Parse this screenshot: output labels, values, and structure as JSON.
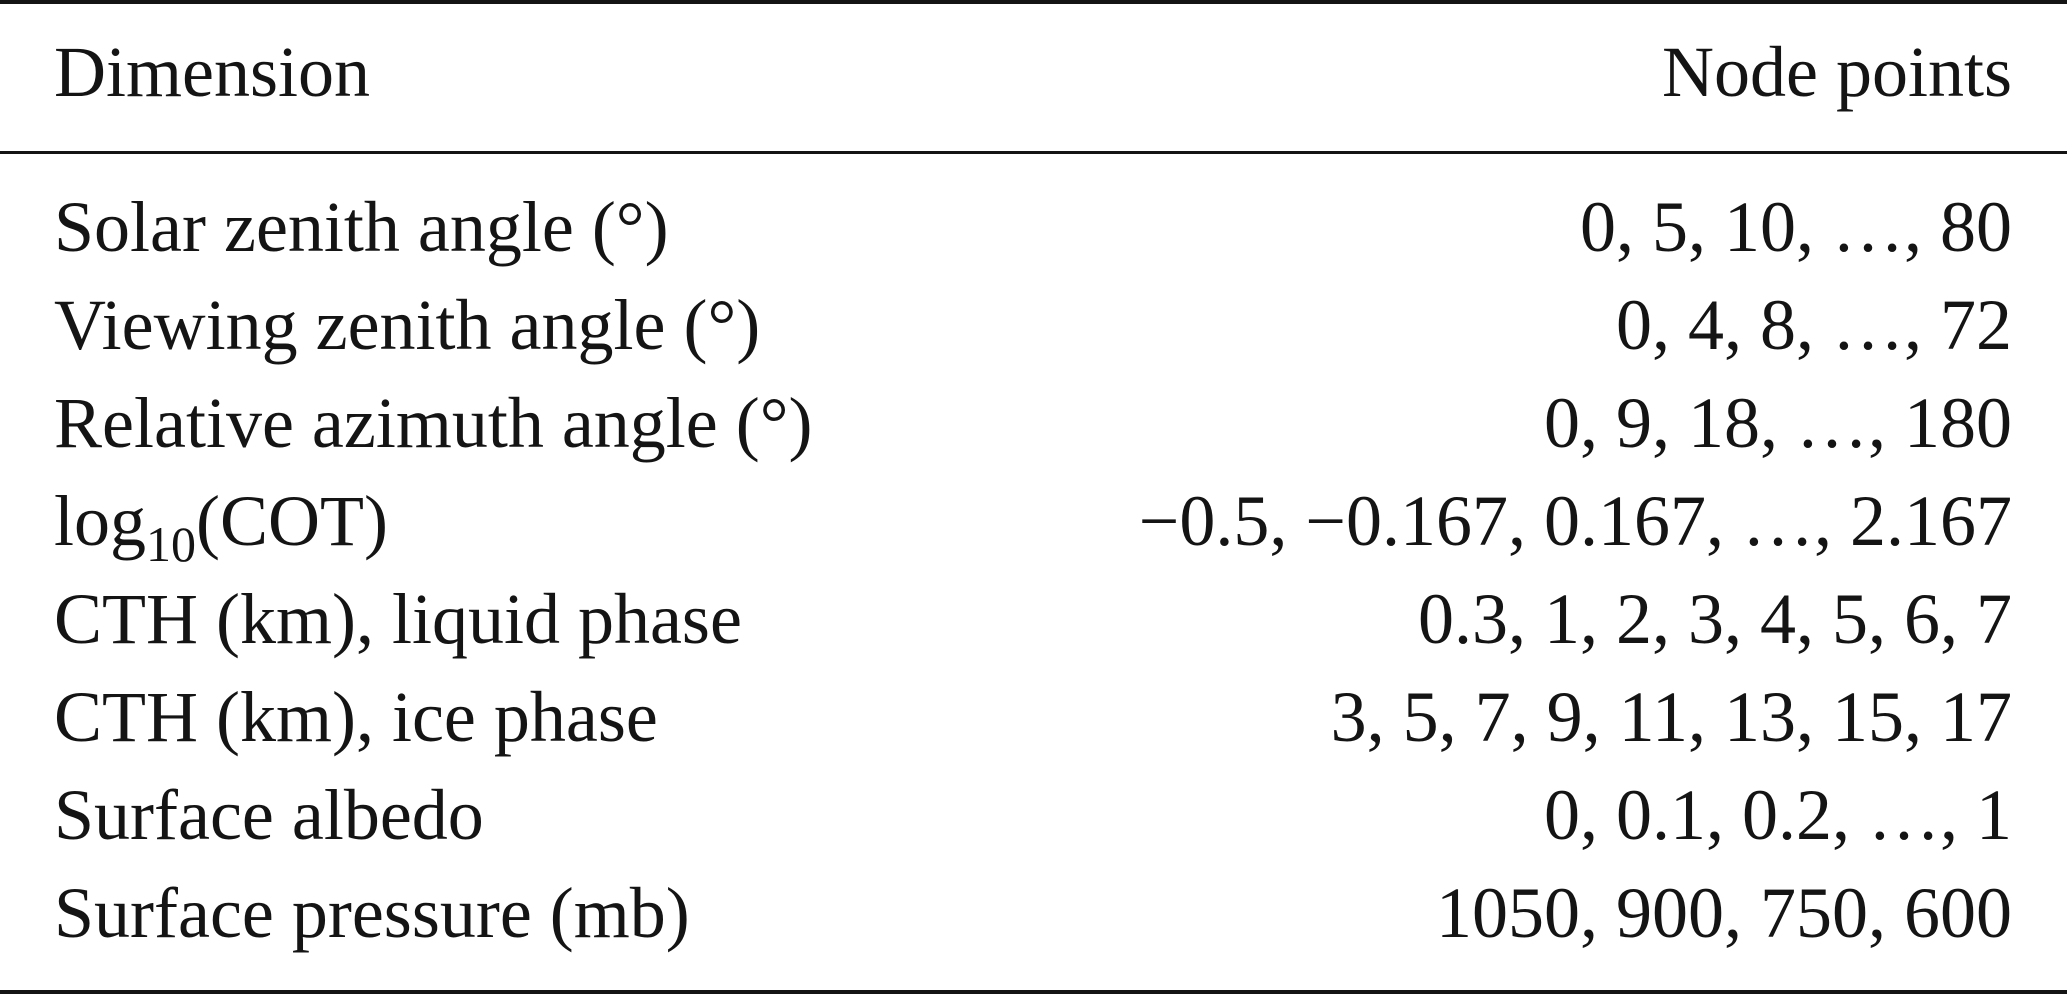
{
  "table": {
    "headers": {
      "dimension": "Dimension",
      "node_points": "Node points"
    },
    "rows": [
      {
        "dimension": "Solar zenith angle (°)",
        "nodes": "0, 5, 10, …, 80"
      },
      {
        "dimension": "Viewing zenith angle (°)",
        "nodes": "0, 4, 8, …, 72"
      },
      {
        "dimension": "Relative azimuth angle (°)",
        "nodes": "0, 9, 18, …, 180"
      },
      {
        "dimension_prefix": "log",
        "dimension_subscript": "10",
        "dimension_suffix": "(COT)",
        "nodes": "−0.5, −0.167, 0.167, …, 2.167"
      },
      {
        "dimension": "CTH (km), liquid phase",
        "nodes": "0.3, 1, 2, 3, 4, 5, 6, 7"
      },
      {
        "dimension": "CTH (km), ice phase",
        "nodes": "3, 5, 7, 9, 11, 13, 15, 17"
      },
      {
        "dimension": "Surface albedo",
        "nodes": "0, 0.1, 0.2, …, 1"
      },
      {
        "dimension": "Surface pressure (mb)",
        "nodes": "1050, 900, 750, 600"
      }
    ]
  }
}
